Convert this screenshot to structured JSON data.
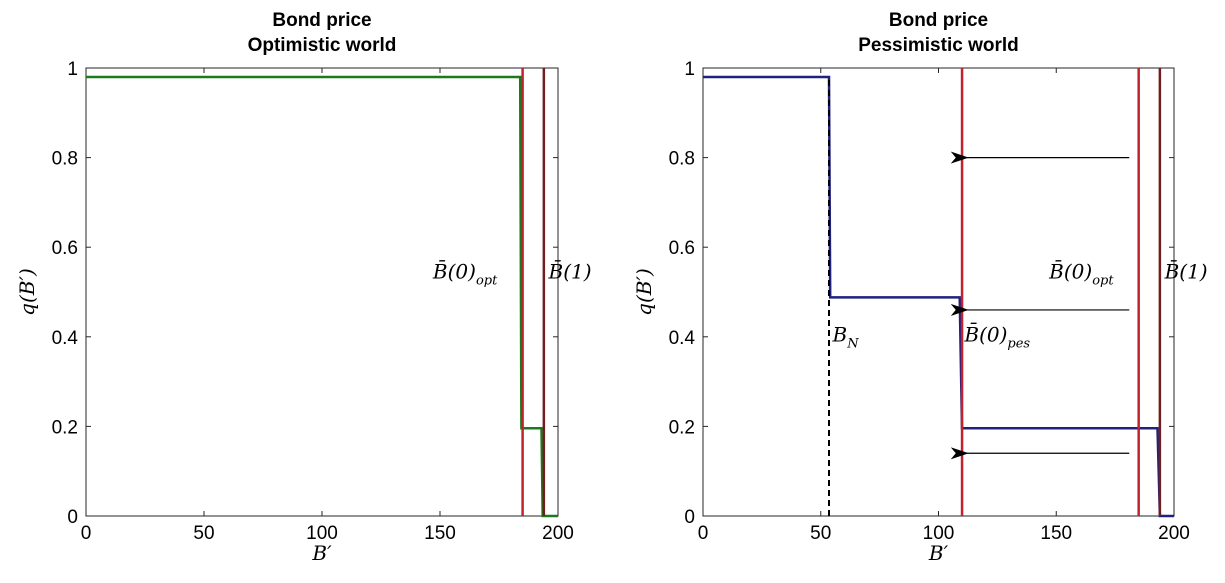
{
  "chart_data": [
    {
      "type": "line",
      "title": [
        "Bond price",
        "Optimistic world"
      ],
      "xlabel": "B′",
      "ylabel": "q(B′)",
      "xlim": [
        0,
        200
      ],
      "ylim": [
        0,
        1
      ],
      "xticks": [
        "0",
        "50",
        "100",
        "150",
        "200"
      ],
      "yticks": [
        "0",
        "0.2",
        "0.4",
        "0.6",
        "0.8",
        "1"
      ],
      "grid": false,
      "series": [
        {
          "color": "#1b7a1b",
          "style": "solid",
          "x": [
            0,
            184,
            184.5,
            193,
            193.5,
            200
          ],
          "y": [
            0.98,
            0.98,
            0.196,
            0.196,
            0,
            0
          ]
        }
      ],
      "vlines": [
        {
          "x": 185,
          "color": "#c0232b"
        },
        {
          "x": 194,
          "color": "#6e1f1f"
        }
      ],
      "annotations": [
        {
          "text": "B̄(0)",
          "sub": "opt",
          "x": 147,
          "y": 0.53
        },
        {
          "text": "B̄(1)",
          "sub": "",
          "x": 196,
          "y": 0.53
        }
      ]
    },
    {
      "type": "line",
      "title": [
        "Bond price",
        "Pessimistic world"
      ],
      "xlabel": "B′",
      "ylabel": "q(B′)",
      "xlim": [
        0,
        200
      ],
      "ylim": [
        0,
        1
      ],
      "xticks": [
        "0",
        "50",
        "100",
        "150",
        "200"
      ],
      "yticks": [
        "0",
        "0.2",
        "0.4",
        "0.6",
        "0.8",
        "1"
      ],
      "grid": false,
      "series": [
        {
          "color": "#20207f",
          "style": "solid",
          "x": [
            0,
            53.5,
            54,
            109,
            110,
            193,
            194,
            200
          ],
          "y": [
            0.98,
            0.98,
            0.488,
            0.488,
            0.196,
            0.196,
            0,
            0
          ]
        },
        {
          "color": "#000000",
          "style": "dashed",
          "x": [
            53.5,
            53.5
          ],
          "y": [
            0,
            0.98
          ]
        }
      ],
      "vlines": [
        {
          "x": 110,
          "color": "#c0232b"
        },
        {
          "x": 185,
          "color": "#c0232b"
        },
        {
          "x": 194,
          "color": "#6e1f1f"
        }
      ],
      "arrows": [
        {
          "x1": 181,
          "x2": 112,
          "y": 0.8
        },
        {
          "x1": 181,
          "x2": 112,
          "y": 0.46
        },
        {
          "x1": 181,
          "x2": 112,
          "y": 0.14
        }
      ],
      "annotations": [
        {
          "text": "B̄(0)",
          "sub": "opt",
          "x": 147,
          "y": 0.53
        },
        {
          "text": "B̄(1)",
          "sub": "",
          "x": 196,
          "y": 0.53
        },
        {
          "text": "B",
          "sub": "N",
          "x": 55,
          "y": 0.39
        },
        {
          "text": "B̄(0)",
          "sub": "pes",
          "x": 111,
          "y": 0.39
        }
      ]
    }
  ]
}
